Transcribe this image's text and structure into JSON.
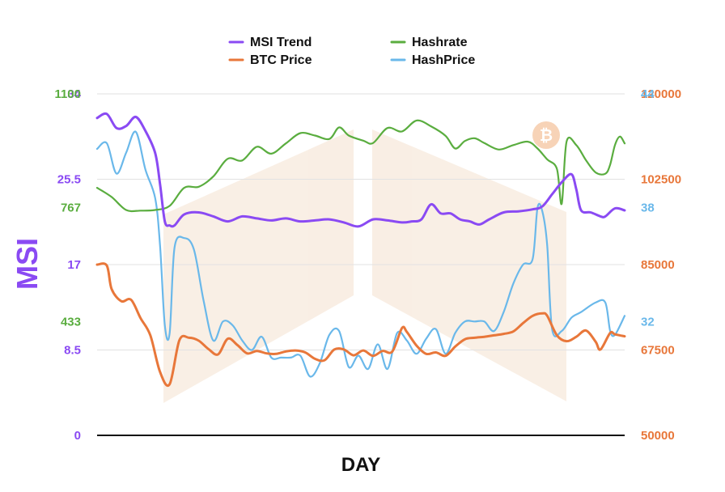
{
  "chart_data": {
    "type": "line",
    "xlabel": "DAY",
    "ylabel": "MSI",
    "n_points": 110,
    "colors": {
      "msi": "#8a4af3",
      "btc": "#e8773a",
      "hashrate": "#5aad3f",
      "hashprice": "#6ab8ea",
      "watermark": "#f7e9dc"
    },
    "axes": {
      "msi": {
        "ylim": [
          0,
          34
        ],
        "ticks": [
          "0",
          "8.5",
          "17",
          "25.5",
          "34"
        ],
        "tick_values": [
          0,
          8.5,
          17,
          25.5,
          34
        ]
      },
      "hashrate": {
        "ylim": [
          100,
          1100
        ],
        "ticks": [
          "433",
          "767",
          "1100"
        ],
        "tick_values": [
          433,
          767,
          1100
        ]
      },
      "btc": {
        "ylim": [
          50000,
          120000
        ],
        "ticks": [
          "50000",
          "67500",
          "85000",
          "102500",
          "120000"
        ],
        "tick_values": [
          50000,
          67500,
          85000,
          102500,
          120000
        ]
      },
      "hashprice": {
        "ylim": [
          26,
          44
        ],
        "ticks": [
          "32",
          "38",
          "44"
        ],
        "tick_values": [
          32,
          38,
          44
        ]
      }
    },
    "legend": [
      {
        "key": "msi",
        "label": "MSI Trend"
      },
      {
        "key": "btc",
        "label": "BTC Price"
      },
      {
        "key": "hashrate",
        "label": "Hashrate"
      },
      {
        "key": "hashprice",
        "label": "HashPrice"
      }
    ],
    "series": [
      {
        "name": "MSI Trend",
        "key": "msi",
        "axis": "msi",
        "anchors": [
          [
            0,
            31.6
          ],
          [
            2,
            32
          ],
          [
            4,
            30.6
          ],
          [
            6,
            30.8
          ],
          [
            8,
            31.7
          ],
          [
            10,
            30.3
          ],
          [
            12,
            28.1
          ],
          [
            13,
            25
          ],
          [
            14,
            21.3
          ],
          [
            15,
            20.9
          ],
          [
            16,
            20.9
          ],
          [
            18,
            22
          ],
          [
            21,
            22.2
          ],
          [
            24,
            21.8
          ],
          [
            27,
            21.3
          ],
          [
            30,
            21.8
          ],
          [
            33,
            21.6
          ],
          [
            36,
            21.4
          ],
          [
            39,
            21.6
          ],
          [
            42,
            21.3
          ],
          [
            45,
            21.4
          ],
          [
            48,
            21.5
          ],
          [
            51,
            21.2
          ],
          [
            54,
            20.8
          ],
          [
            57,
            21.5
          ],
          [
            60,
            21.4
          ],
          [
            63,
            21.2
          ],
          [
            65,
            21.3
          ],
          [
            67,
            21.5
          ],
          [
            69,
            23
          ],
          [
            71,
            22.1
          ],
          [
            73,
            22.1
          ],
          [
            75,
            21.5
          ],
          [
            77,
            21.3
          ],
          [
            79,
            21
          ],
          [
            81,
            21.5
          ],
          [
            84,
            22.2
          ],
          [
            87,
            22.3
          ],
          [
            90,
            22.5
          ],
          [
            92,
            22.8
          ],
          [
            94,
            24
          ],
          [
            96,
            25.2
          ],
          [
            98,
            26
          ],
          [
            99,
            24.5
          ],
          [
            100,
            22.4
          ],
          [
            102,
            22.2
          ],
          [
            104,
            21.8
          ],
          [
            105,
            21.8
          ],
          [
            107,
            22.6
          ],
          [
            109,
            22.4
          ]
        ]
      },
      {
        "name": "BTC Price",
        "key": "btc",
        "axis": "btc",
        "anchors": [
          [
            0,
            85000
          ],
          [
            2,
            84800
          ],
          [
            3,
            80000
          ],
          [
            5,
            77500
          ],
          [
            7,
            77800
          ],
          [
            9,
            74000
          ],
          [
            11,
            70500
          ],
          [
            13,
            63000
          ],
          [
            15,
            60500
          ],
          [
            17,
            69500
          ],
          [
            19,
            70000
          ],
          [
            21,
            69400
          ],
          [
            23,
            67700
          ],
          [
            25,
            66600
          ],
          [
            27,
            69800
          ],
          [
            29,
            68500
          ],
          [
            31,
            66800
          ],
          [
            33,
            67300
          ],
          [
            35,
            66800
          ],
          [
            37,
            66700
          ],
          [
            39,
            67200
          ],
          [
            41,
            67400
          ],
          [
            43,
            67000
          ],
          [
            45,
            65700
          ],
          [
            47,
            65400
          ],
          [
            49,
            67600
          ],
          [
            51,
            67600
          ],
          [
            53,
            66400
          ],
          [
            55,
            67400
          ],
          [
            57,
            66300
          ],
          [
            59,
            67300
          ],
          [
            61,
            67200
          ],
          [
            63,
            72000
          ],
          [
            64,
            71200
          ],
          [
            66,
            68400
          ],
          [
            68,
            66700
          ],
          [
            70,
            67000
          ],
          [
            72,
            66300
          ],
          [
            74,
            68200
          ],
          [
            76,
            69700
          ],
          [
            78,
            70000
          ],
          [
            80,
            70200
          ],
          [
            82,
            70500
          ],
          [
            84,
            70800
          ],
          [
            86,
            71300
          ],
          [
            88,
            73000
          ],
          [
            90,
            74500
          ],
          [
            92,
            75000
          ],
          [
            93,
            74500
          ],
          [
            95,
            70500
          ],
          [
            97,
            69300
          ],
          [
            99,
            70200
          ],
          [
            101,
            71500
          ],
          [
            103,
            69200
          ],
          [
            104,
            67600
          ],
          [
            106,
            71000
          ],
          [
            107,
            70700
          ],
          [
            109,
            70300
          ]
        ]
      },
      {
        "name": "Hashrate",
        "key": "hashrate",
        "axis": "hashrate",
        "anchors": [
          [
            0,
            825
          ],
          [
            3,
            798
          ],
          [
            6,
            760
          ],
          [
            9,
            758
          ],
          [
            12,
            760
          ],
          [
            15,
            772
          ],
          [
            18,
            825
          ],
          [
            21,
            828
          ],
          [
            24,
            858
          ],
          [
            27,
            910
          ],
          [
            30,
            905
          ],
          [
            33,
            945
          ],
          [
            36,
            925
          ],
          [
            39,
            955
          ],
          [
            42,
            985
          ],
          [
            45,
            978
          ],
          [
            48,
            968
          ],
          [
            50,
            1002
          ],
          [
            52,
            978
          ],
          [
            55,
            963
          ],
          [
            57,
            956
          ],
          [
            60,
            1000
          ],
          [
            63,
            990
          ],
          [
            66,
            1022
          ],
          [
            69,
            1005
          ],
          [
            72,
            977
          ],
          [
            74,
            940
          ],
          [
            76,
            962
          ],
          [
            78,
            970
          ],
          [
            80,
            956
          ],
          [
            83,
            937
          ],
          [
            86,
            950
          ],
          [
            89,
            960
          ],
          [
            91,
            940
          ],
          [
            93,
            908
          ],
          [
            95,
            880
          ],
          [
            96,
            778
          ],
          [
            97,
            960
          ],
          [
            99,
            950
          ],
          [
            101,
            906
          ],
          [
            103,
            870
          ],
          [
            105,
            866
          ],
          [
            106,
            893
          ],
          [
            107,
            950
          ],
          [
            108,
            975
          ],
          [
            109,
            955
          ]
        ]
      },
      {
        "name": "HashPrice",
        "key": "hashprice",
        "axis": "hashprice",
        "anchors": [
          [
            0,
            41.1
          ],
          [
            2,
            41.4
          ],
          [
            4,
            39.8
          ],
          [
            6,
            40.9
          ],
          [
            8,
            42
          ],
          [
            10,
            40
          ],
          [
            12,
            38.5
          ],
          [
            13,
            36
          ],
          [
            14,
            31.8
          ],
          [
            15,
            31.4
          ],
          [
            16,
            35.9
          ],
          [
            18,
            36.4
          ],
          [
            20,
            35.8
          ],
          [
            22,
            33.1
          ],
          [
            24,
            31
          ],
          [
            26,
            32
          ],
          [
            28,
            31.8
          ],
          [
            30,
            31
          ],
          [
            32,
            30.5
          ],
          [
            34,
            31.2
          ],
          [
            36,
            30.1
          ],
          [
            38,
            30.1
          ],
          [
            40,
            30.1
          ],
          [
            42,
            30.2
          ],
          [
            44,
            29.1
          ],
          [
            46,
            29.8
          ],
          [
            48,
            31.3
          ],
          [
            50,
            31.5
          ],
          [
            52,
            29.6
          ],
          [
            54,
            30.2
          ],
          [
            56,
            29.5
          ],
          [
            58,
            30.8
          ],
          [
            60,
            29.5
          ],
          [
            62,
            31.4
          ],
          [
            64,
            31
          ],
          [
            66,
            30.3
          ],
          [
            68,
            31.1
          ],
          [
            70,
            31.6
          ],
          [
            72,
            30.3
          ],
          [
            74,
            31.4
          ],
          [
            76,
            32
          ],
          [
            78,
            32
          ],
          [
            80,
            32
          ],
          [
            82,
            31.5
          ],
          [
            84,
            32.5
          ],
          [
            86,
            34
          ],
          [
            88,
            35
          ],
          [
            90,
            35.3
          ],
          [
            91,
            38
          ],
          [
            92,
            37.8
          ],
          [
            93,
            36
          ],
          [
            94,
            31.6
          ],
          [
            96,
            31.5
          ],
          [
            98,
            32.2
          ],
          [
            100,
            32.5
          ],
          [
            103,
            33
          ],
          [
            105,
            33
          ],
          [
            106,
            31.5
          ],
          [
            107,
            31.3
          ],
          [
            109,
            32.3
          ]
        ]
      }
    ]
  }
}
